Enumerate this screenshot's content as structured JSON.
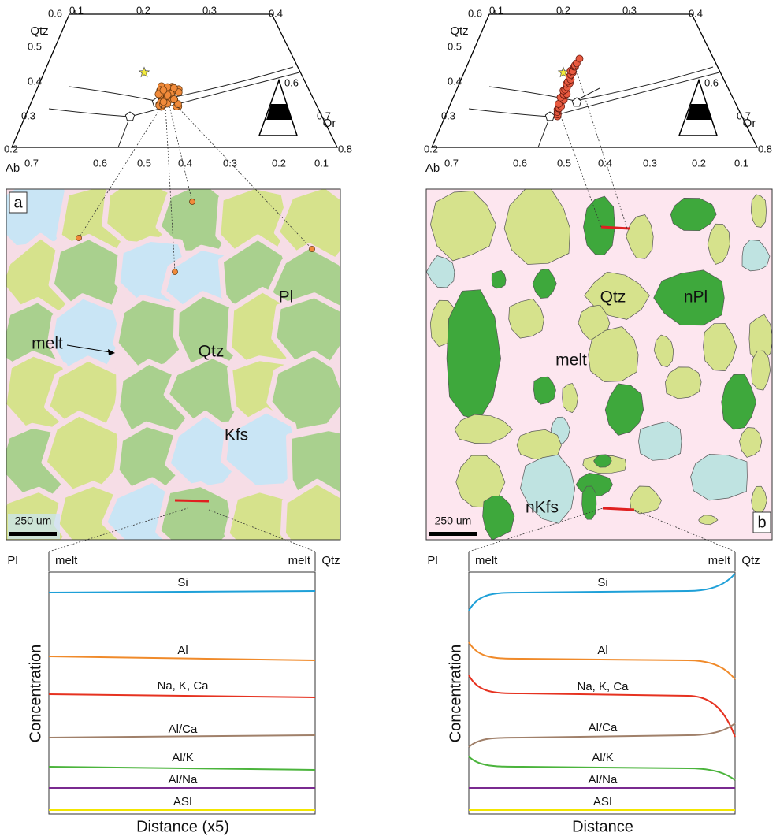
{
  "panels": [
    {
      "label": "a",
      "ternary": {
        "apex_label": "Qtz",
        "left_label": "Ab",
        "right_label": "Or",
        "top_ticks": [
          "0.6",
          "0.1",
          "0.2",
          "0.3",
          "0.4"
        ],
        "left_ticks": [
          "0.5",
          "0.4",
          "0.3",
          "0.2"
        ],
        "right_ticks": [
          "0.6",
          "0.7",
          "0.8"
        ],
        "bottom_ticks": [
          "0.7",
          "0.6",
          "0.5",
          "0.4",
          "0.3",
          "0.2",
          "0.1"
        ]
      },
      "map": {
        "labels": [
          "melt",
          "Qtz",
          "Pl",
          "Kfs"
        ],
        "scale_bar": "250 um"
      },
      "profile": {
        "left_phase": "Pl",
        "left_zone": "melt",
        "right_zone": "melt",
        "right_phase": "Qtz",
        "curves": [
          "Si",
          "Al",
          "Na, K, Ca",
          "Al/Ca",
          "Al/K",
          "Al/Na",
          "ASI"
        ],
        "y_label": "Concentration",
        "x_label": "Distance (x5)"
      }
    },
    {
      "label": "b",
      "ternary": {
        "apex_label": "Qtz",
        "left_label": "Ab",
        "right_label": "Or",
        "top_ticks": [
          "0.6",
          "0.1",
          "0.2",
          "0.3",
          "0.4"
        ],
        "left_ticks": [
          "0.5",
          "0.4",
          "0.3",
          "0.2"
        ],
        "right_ticks": [
          "0.6",
          "0.7",
          "0.8"
        ],
        "bottom_ticks": [
          "0.7",
          "0.6",
          "0.5",
          "0.4",
          "0.3",
          "0.2",
          "0.1"
        ]
      },
      "map": {
        "labels": [
          "Qtz",
          "nPl",
          "melt",
          "nKfs"
        ],
        "scale_bar": "250 um"
      },
      "profile": {
        "left_phase": "Pl",
        "left_zone": "melt",
        "right_zone": "melt",
        "right_phase": "Qtz",
        "curves": [
          "Si",
          "Al",
          "Na, K, Ca",
          "Al/Ca",
          "Al/K",
          "Al/Na",
          "ASI"
        ],
        "y_label": "Concentration",
        "x_label": "Distance"
      }
    }
  ]
}
